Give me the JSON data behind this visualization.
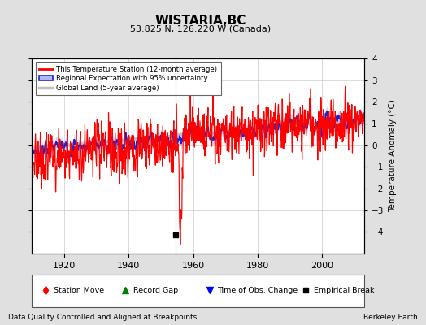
{
  "title": "WISTARIA,BC",
  "subtitle": "53.825 N, 126.220 W (Canada)",
  "ylabel": "Temperature Anomaly (°C)",
  "xlabel_note": "Data Quality Controlled and Aligned at Breakpoints",
  "source_note": "Berkeley Earth",
  "ylim": [
    -5,
    4
  ],
  "xlim": [
    1910,
    2013
  ],
  "xticks": [
    1920,
    1940,
    1960,
    1980,
    2000
  ],
  "yticks": [
    -4,
    -3,
    -2,
    -1,
    0,
    1,
    2,
    3,
    4
  ],
  "bg_color": "#e0e0e0",
  "plot_bg_color": "#ffffff",
  "grid_color": "#cccccc",
  "empirical_break_x": 1954.5,
  "empirical_break_y": -4.15,
  "vertical_line_x": 1954.5,
  "station_line_color": "#ff0000",
  "regional_line_color": "#2222cc",
  "regional_fill_color": "#b0b8f8",
  "global_line_color": "#c0c0c0",
  "legend_labels": [
    "This Temperature Station (12-month average)",
    "Regional Expectation with 95% uncertainty",
    "Global Land (5-year average)"
  ]
}
